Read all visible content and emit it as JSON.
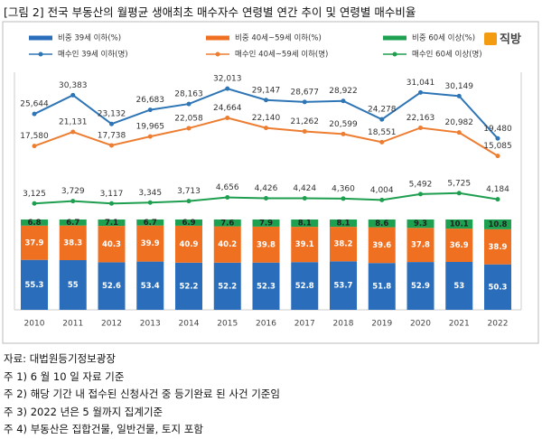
{
  "chart_data": {
    "type": "bar",
    "title": "[그림 2] 전국 부동산의 월평균 생애최초 매수자수 연령별 연간 추이 및 연령별 매수비율",
    "logo": "직방",
    "categories": [
      "2010",
      "2011",
      "2012",
      "2013",
      "2014",
      "2015",
      "2016",
      "2017",
      "2018",
      "2019",
      "2020",
      "2021",
      "2022"
    ],
    "ylim": [
      0,
      100
    ],
    "y2lim": [
      0,
      35000
    ],
    "series": [
      {
        "name": "비중 39세 이하(%)",
        "type": "bar",
        "color": "#2a6ebb",
        "values": [
          55.3,
          55.0,
          52.6,
          53.4,
          52.2,
          52.2,
          52.3,
          52.8,
          53.7,
          51.8,
          52.9,
          53.0,
          50.3
        ]
      },
      {
        "name": "비중 40세~59세 이하(%)",
        "type": "bar",
        "color": "#f07021",
        "values": [
          37.9,
          38.3,
          40.3,
          39.9,
          40.9,
          40.2,
          39.8,
          39.1,
          38.2,
          39.6,
          37.8,
          36.9,
          38.9
        ]
      },
      {
        "name": "비중 60세 이상(%)",
        "type": "bar",
        "color": "#1da150",
        "values": [
          6.8,
          6.7,
          7.1,
          6.7,
          6.9,
          7.6,
          7.9,
          8.1,
          8.1,
          8.6,
          9.3,
          10.1,
          10.8
        ]
      },
      {
        "name": "매수인 39세 이하(명)",
        "type": "line",
        "axis": "y2",
        "color": "#2e75b6",
        "values": [
          25644,
          30383,
          23132,
          26683,
          28163,
          32013,
          29147,
          28677,
          28922,
          24278,
          31041,
          30149,
          19480
        ],
        "value_labels": [
          "25,644",
          "30,383",
          "23,132",
          "26,683",
          "28,163",
          "32,013",
          "29,147",
          "28,677",
          "28,922",
          "24,278",
          "31,041",
          "30,149",
          "19,480"
        ]
      },
      {
        "name": "매수인 40세~59세 이하(명)",
        "type": "line",
        "axis": "y2",
        "color": "#ed7d31",
        "values": [
          17580,
          21131,
          17738,
          19965,
          22058,
          24664,
          22140,
          21262,
          20599,
          18551,
          22163,
          20982,
          15085
        ],
        "value_labels": [
          "17,580",
          "21,131",
          "17,738",
          "19,965",
          "22,058",
          "24,664",
          "22,140",
          "21,262",
          "20,599",
          "18,551",
          "22,163",
          "20,982",
          "15,085"
        ]
      },
      {
        "name": "매수인 60세 이상(명)",
        "type": "line",
        "axis": "y2",
        "color": "#1e9e4f",
        "values": [
          3125,
          3729,
          3117,
          3345,
          3713,
          4656,
          4426,
          4424,
          4360,
          4004,
          5492,
          5725,
          4184
        ],
        "value_labels": [
          "3,125",
          "3,729",
          "3,117",
          "3,345",
          "3,713",
          "4,656",
          "4,426",
          "4,424",
          "4,360",
          "4,004",
          "5,492",
          "5,725",
          "4,184"
        ]
      }
    ]
  },
  "notes": [
    "자료: 대법원등기정보광장",
    "주 1) 6 월 10 일 자료 기준",
    "주 2) 해당 기간 내 접수된 신청사건 중 등기완료 된 사건 기준임",
    "주 3) 2022 년은 5 월까지 집계기준",
    "주 4) 부동산은 집합건물, 일반건물, 토지 포함"
  ]
}
